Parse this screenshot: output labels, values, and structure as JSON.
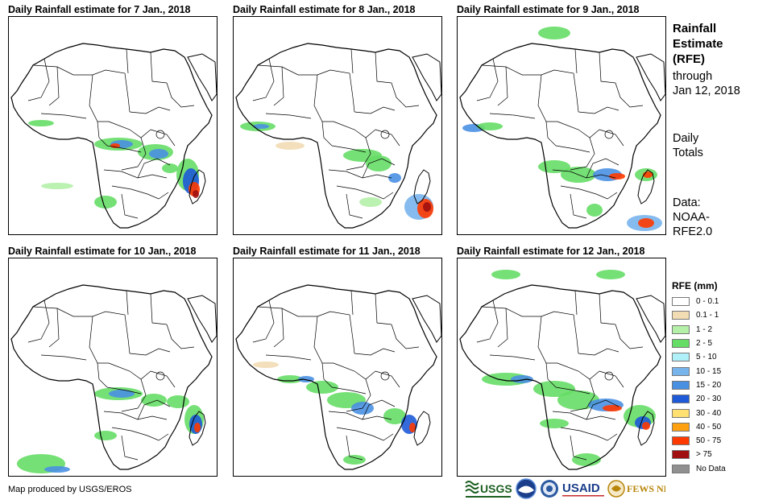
{
  "panels": [
    {
      "title": "Daily Rainfall estimate for 7 Jan., 2018"
    },
    {
      "title": "Daily Rainfall estimate for 8 Jan., 2018"
    },
    {
      "title": "Daily Rainfall estimate for 9 Jan., 2018"
    },
    {
      "title": "Daily Rainfall estimate for 10 Jan., 2018"
    },
    {
      "title": "Daily Rainfall estimate for 11 Jan., 2018"
    },
    {
      "title": "Daily Rainfall estimate for 12 Jan., 2018"
    }
  ],
  "sidebar": {
    "title_line1": "Rainfall",
    "title_line2": "Estimate",
    "title_line3": "(RFE)",
    "through_label": "through",
    "through_date": "Jan 12, 2018",
    "totals_line1": "Daily",
    "totals_line2": "Totals",
    "data_line1": "Data:",
    "data_line2": "NOAA-",
    "data_line3": "RFE2.0"
  },
  "legend": {
    "title": "RFE (mm)",
    "items": [
      {
        "label": "0 - 0.1",
        "color": "#ffffff"
      },
      {
        "label": "0.1 - 1",
        "color": "#f2dcb4"
      },
      {
        "label": "1 - 2",
        "color": "#b4f0a8"
      },
      {
        "label": "2 - 5",
        "color": "#66dd66"
      },
      {
        "label": "5 - 10",
        "color": "#b0f0f8"
      },
      {
        "label": "10 - 15",
        "color": "#78b4ec"
      },
      {
        "label": "15 - 20",
        "color": "#4a90e2"
      },
      {
        "label": "20 - 30",
        "color": "#1e5ad8"
      },
      {
        "label": "30 - 40",
        "color": "#ffe070"
      },
      {
        "label": "40 - 50",
        "color": "#ffa010"
      },
      {
        "label": "50 - 75",
        "color": "#ff3a00"
      },
      {
        "label": "> 75",
        "color": "#a01010"
      },
      {
        "label": "No Data",
        "color": "#909090"
      }
    ]
  },
  "credit": "Map produced by USGS/EROS",
  "logos": {
    "usgs": "USGS",
    "usaid": "USAID",
    "fewsnet": "FEWS NET"
  }
}
